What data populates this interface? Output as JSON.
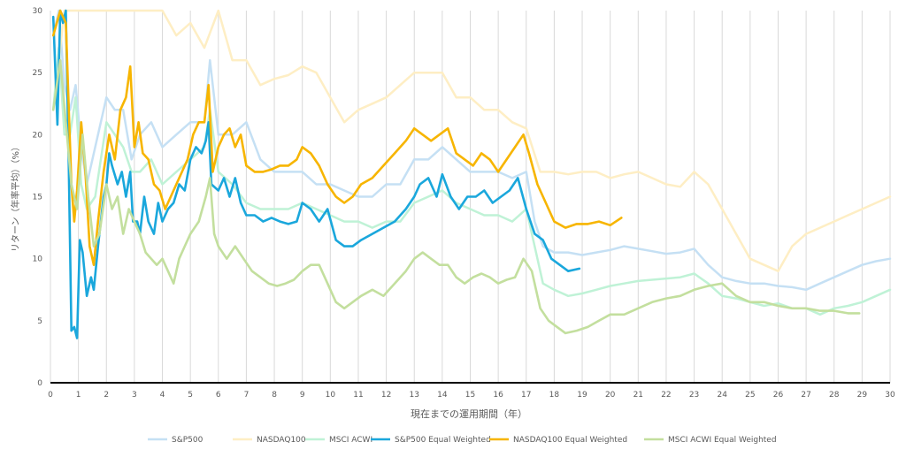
{
  "chart_data": {
    "type": "line",
    "title": "",
    "xlabel": "現在までの運用期間（年）",
    "ylabel": "リターン（年率平均）（%）",
    "xlim": [
      0,
      30
    ],
    "ylim": [
      0,
      30
    ],
    "xticks": [
      "0",
      "1",
      "2",
      "3",
      "4",
      "5",
      "6",
      "7",
      "8",
      "9",
      "10",
      "11",
      "12",
      "13",
      "14",
      "15",
      "16",
      "17",
      "18",
      "19",
      "20",
      "21",
      "22",
      "23",
      "24",
      "25",
      "26",
      "27",
      "28",
      "29",
      "30"
    ],
    "yticks": [
      "0",
      "5",
      "10",
      "15",
      "20",
      "25",
      "30"
    ],
    "grid": "vertical",
    "legend_position": "bottom",
    "series": [
      {
        "name": "S&P500",
        "color": "#c5e0f4",
        "width": 2.5,
        "x": [
          0.1,
          0.3,
          0.5,
          0.7,
          0.9,
          1.1,
          1.3,
          1.6,
          2.0,
          2.3,
          2.6,
          2.9,
          3.2,
          3.6,
          4.0,
          4.5,
          5.0,
          5.5,
          5.7,
          6.0,
          6.5,
          7.0,
          7.5,
          8.0,
          8.5,
          9.0,
          9.5,
          10.0,
          10.5,
          11.0,
          11.5,
          12.0,
          12.5,
          13.0,
          13.5,
          14.0,
          14.5,
          15.0,
          15.5,
          16.0,
          16.5,
          17.0,
          17.3,
          17.6,
          18.0,
          18.5,
          19.0,
          19.5,
          20.0,
          20.5,
          21.0,
          21.5,
          22.0,
          22.5,
          23.0,
          23.5,
          24.0,
          24.5,
          25.0,
          25.5,
          26.0,
          26.5,
          27.0,
          27.5,
          28.0,
          28.5,
          29.0,
          29.5,
          30.0
        ],
        "y": [
          28,
          30,
          24,
          22,
          24,
          19,
          16,
          19,
          23,
          22,
          22,
          18,
          20,
          21,
          19,
          20,
          21,
          21,
          26,
          20,
          20,
          21,
          18,
          17,
          17,
          17,
          16,
          16,
          15.5,
          15,
          15,
          16,
          16,
          18,
          18,
          19,
          18,
          17,
          17,
          17,
          16.5,
          17,
          13,
          11,
          10.5,
          10.5,
          10.3,
          10.5,
          10.7,
          11,
          10.8,
          10.6,
          10.4,
          10.5,
          10.8,
          9.5,
          8.5,
          8.2,
          8,
          8,
          7.8,
          7.7,
          7.5,
          8,
          8.5,
          9,
          9.5,
          9.8,
          10
        ]
      },
      {
        "name": "NASDAQ100",
        "color": "#feeec4",
        "width": 2.5,
        "x": [
          0.1,
          0.5,
          1.0,
          1.5,
          2.0,
          2.5,
          3.0,
          3.5,
          4.0,
          4.5,
          5.0,
          5.5,
          6.0,
          6.5,
          7.0,
          7.5,
          8.0,
          8.5,
          9.0,
          9.5,
          10.0,
          10.5,
          11.0,
          11.5,
          12.0,
          12.5,
          13.0,
          13.5,
          14.0,
          14.5,
          15.0,
          15.5,
          16.0,
          16.5,
          17.0,
          17.5,
          18.0,
          18.5,
          19.0,
          19.5,
          20.0,
          20.5,
          21.0,
          21.5,
          22.0,
          22.5,
          23.0,
          23.5,
          24.0,
          24.5,
          25.0,
          25.5,
          26.0,
          26.5,
          27.0,
          27.5,
          28.0,
          28.5,
          29.0,
          29.5,
          30.0
        ],
        "y": [
          22,
          30,
          30,
          30,
          30,
          30,
          30,
          30,
          30,
          28,
          29,
          27,
          30,
          26,
          26,
          24,
          24.5,
          24.8,
          25.5,
          25,
          23,
          21,
          22,
          22.5,
          23,
          24,
          25,
          25,
          25,
          23,
          23,
          22,
          22,
          21,
          20.5,
          17,
          17,
          16.8,
          17,
          17,
          16.5,
          16.8,
          17,
          16.5,
          16,
          15.8,
          17,
          16,
          14,
          12,
          10,
          9.5,
          9,
          11,
          12,
          12.5,
          13,
          13.5,
          14,
          14.5,
          15
        ]
      },
      {
        "name": "MSCI ACWI",
        "color": "#bff2d6",
        "width": 2.5,
        "x": [
          0.1,
          0.3,
          0.5,
          0.7,
          0.9,
          1.1,
          1.3,
          1.6,
          2.0,
          2.3,
          2.6,
          2.9,
          3.2,
          3.6,
          4.0,
          4.5,
          5.0,
          5.5,
          5.7,
          6.0,
          6.5,
          7.0,
          7.5,
          8.0,
          8.5,
          9.0,
          9.5,
          10.0,
          10.5,
          11.0,
          11.5,
          12.0,
          12.5,
          13.0,
          13.5,
          14.0,
          14.5,
          15.0,
          15.5,
          16.0,
          16.5,
          17.0,
          17.3,
          17.6,
          18.0,
          18.5,
          19.0,
          19.5,
          20.0,
          20.5,
          21.0,
          21.5,
          22.0,
          22.5,
          23.0,
          23.5,
          24.0,
          24.5,
          25.0,
          25.5,
          26.0,
          26.5,
          27.0,
          27.5,
          28.0,
          28.5,
          29.0,
          29.5,
          30.0
        ],
        "y": [
          22,
          27,
          20,
          20,
          23,
          16,
          14,
          15,
          21,
          20,
          19,
          17,
          17,
          18,
          16,
          17,
          18,
          19,
          22,
          17,
          16,
          14.5,
          14,
          14,
          14,
          14.5,
          14,
          13.5,
          13,
          13,
          12.5,
          13,
          13,
          14.5,
          15,
          15.5,
          14.5,
          14,
          13.5,
          13.5,
          13,
          14,
          11,
          8,
          7.5,
          7,
          7.2,
          7.5,
          7.8,
          8,
          8.2,
          8.3,
          8.4,
          8.5,
          8.8,
          8,
          7,
          6.8,
          6.5,
          6.2,
          6.4,
          6,
          6,
          5.5,
          6,
          6.2,
          6.5,
          7,
          7.5
        ]
      },
      {
        "name": "S&P500 Equal Weighted",
        "color": "#1aa7dc",
        "width": 2.6,
        "x": [
          0.1,
          0.25,
          0.35,
          0.45,
          0.55,
          0.65,
          0.75,
          0.85,
          0.95,
          1.05,
          1.15,
          1.3,
          1.45,
          1.55,
          1.7,
          1.9,
          2.0,
          2.1,
          2.2,
          2.4,
          2.55,
          2.7,
          2.85,
          2.95,
          3.1,
          3.2,
          3.35,
          3.5,
          3.7,
          3.85,
          4.0,
          4.2,
          4.4,
          4.6,
          4.8,
          5.0,
          5.2,
          5.4,
          5.55,
          5.65,
          5.75,
          6.0,
          6.2,
          6.4,
          6.6,
          6.8,
          7.0,
          7.3,
          7.6,
          7.9,
          8.2,
          8.5,
          8.8,
          9.0,
          9.3,
          9.6,
          9.9,
          10.2,
          10.5,
          10.8,
          11.1,
          11.5,
          11.9,
          12.3,
          12.7,
          13.0,
          13.2,
          13.5,
          13.8,
          14.0,
          14.3,
          14.6,
          14.9,
          15.2,
          15.5,
          15.8,
          16.1,
          16.4,
          16.7,
          17.0,
          17.3,
          17.6,
          17.9,
          18.2,
          18.5,
          18.9
        ],
        "y": [
          29.5,
          20.8,
          30,
          29,
          30,
          18,
          4.2,
          4.5,
          3.6,
          11.5,
          10.5,
          7,
          8.5,
          7.5,
          11,
          15,
          16,
          18.5,
          17.5,
          16,
          17,
          15,
          17,
          13,
          13,
          12,
          15,
          13,
          12,
          14.5,
          13,
          14,
          14.5,
          16,
          15.5,
          18,
          19,
          18.5,
          19.5,
          21,
          16,
          15.5,
          16.5,
          15,
          16.5,
          14.5,
          13.5,
          13.5,
          13,
          13.3,
          13,
          12.8,
          13,
          14.5,
          14,
          13,
          14,
          11.5,
          11,
          11,
          11.5,
          12,
          12.5,
          13,
          14,
          15,
          16,
          16.5,
          15,
          16.8,
          15,
          14,
          15,
          15,
          15.5,
          14.5,
          15,
          15.5,
          16.5,
          14,
          12,
          11.5,
          10,
          9.5,
          9,
          9.2
        ]
      },
      {
        "name": "NASDAQ100 Equal Weighted",
        "color": "#f7b500",
        "width": 2.6,
        "x": [
          0.1,
          0.35,
          0.55,
          0.75,
          0.85,
          0.95,
          1.1,
          1.25,
          1.4,
          1.55,
          1.7,
          1.9,
          2.1,
          2.3,
          2.5,
          2.7,
          2.85,
          3.0,
          3.15,
          3.3,
          3.5,
          3.7,
          3.9,
          4.1,
          4.3,
          4.5,
          4.7,
          4.9,
          5.1,
          5.3,
          5.5,
          5.65,
          5.8,
          6.0,
          6.2,
          6.4,
          6.6,
          6.8,
          7.0,
          7.3,
          7.6,
          7.9,
          8.2,
          8.5,
          8.8,
          9.0,
          9.3,
          9.6,
          9.9,
          10.2,
          10.5,
          10.8,
          11.1,
          11.5,
          11.9,
          12.3,
          12.7,
          13.0,
          13.3,
          13.6,
          13.9,
          14.2,
          14.5,
          14.8,
          15.1,
          15.4,
          15.7,
          16.0,
          16.3,
          16.6,
          16.9,
          17.1,
          17.4,
          17.7,
          18.0,
          18.4,
          18.8,
          19.2,
          19.6,
          20.0,
          20.4
        ],
        "y": [
          28,
          30,
          29,
          16,
          13,
          15.5,
          21,
          17,
          11,
          9.5,
          13,
          17,
          20,
          18,
          22,
          23,
          25.5,
          19,
          21,
          18.5,
          18,
          16,
          15.5,
          14,
          15,
          16,
          17,
          18,
          20,
          21,
          21,
          24,
          17,
          19,
          20,
          20.5,
          19,
          20,
          17.5,
          17,
          17,
          17.2,
          17.5,
          17.5,
          18,
          19,
          18.5,
          17.5,
          16,
          15,
          14.5,
          15,
          16,
          16.5,
          17.5,
          18.5,
          19.5,
          20.5,
          20,
          19.5,
          20,
          20.5,
          18.5,
          18,
          17.5,
          18.5,
          18,
          17,
          18,
          19,
          20,
          18.5,
          16,
          14.5,
          13,
          12.5,
          12.8,
          12.8,
          13,
          12.7,
          13.3
        ]
      },
      {
        "name": "MSCI ACWI Equal Weighted",
        "color": "#c3df9e",
        "width": 2.6,
        "x": [
          0.1,
          0.35,
          0.55,
          0.75,
          0.95,
          1.15,
          1.35,
          1.55,
          1.75,
          2.0,
          2.2,
          2.4,
          2.6,
          2.8,
          3.0,
          3.2,
          3.4,
          3.6,
          3.8,
          4.0,
          4.2,
          4.4,
          4.6,
          4.8,
          5.0,
          5.3,
          5.55,
          5.7,
          5.85,
          6.0,
          6.3,
          6.6,
          6.9,
          7.2,
          7.5,
          7.8,
          8.1,
          8.4,
          8.7,
          9.0,
          9.3,
          9.6,
          9.9,
          10.2,
          10.5,
          10.8,
          11.1,
          11.5,
          11.9,
          12.3,
          12.7,
          13.0,
          13.3,
          13.6,
          13.9,
          14.2,
          14.5,
          14.8,
          15.1,
          15.4,
          15.7,
          16.0,
          16.3,
          16.6,
          16.9,
          17.2,
          17.5,
          17.8,
          18.1,
          18.4,
          18.8,
          19.2,
          19.6,
          20.0,
          20.5,
          21.0,
          21.5,
          22.0,
          22.5,
          23.0,
          23.5,
          24.0,
          24.5,
          25.0,
          25.5,
          26.0,
          26.5,
          27.0,
          27.5,
          28.0,
          28.5,
          28.9
        ],
        "y": [
          22,
          26,
          21,
          16,
          14,
          20,
          15,
          11,
          12,
          16,
          14,
          15,
          12,
          14,
          13,
          12,
          10.5,
          10,
          9.5,
          10,
          9,
          8,
          10,
          11,
          12,
          13,
          15,
          16.5,
          12,
          11,
          10,
          11,
          10,
          9,
          8.5,
          8,
          7.8,
          8,
          8.3,
          9,
          9.5,
          9.5,
          8,
          6.5,
          6,
          6.5,
          7,
          7.5,
          7,
          8,
          9,
          10,
          10.5,
          10,
          9.5,
          9.5,
          8.5,
          8,
          8.5,
          8.8,
          8.5,
          8,
          8.3,
          8.5,
          10,
          9,
          6,
          5,
          4.5,
          4,
          4.2,
          4.5,
          5,
          5.5,
          5.5,
          6,
          6.5,
          6.8,
          7,
          7.5,
          7.8,
          8,
          7,
          6.5,
          6.5,
          6.2,
          6,
          6,
          5.8,
          5.8,
          5.6,
          5.6
        ]
      }
    ]
  }
}
